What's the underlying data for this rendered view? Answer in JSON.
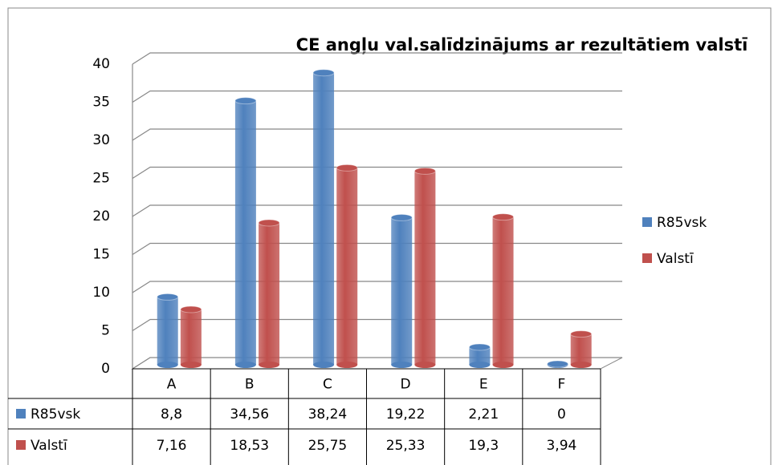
{
  "chart_data": {
    "type": "bar",
    "title": "CE angļu val.salīdzinājums ar rezultātiem valstī",
    "categories": [
      "A",
      "B",
      "C",
      "D",
      "E",
      "F"
    ],
    "series": [
      {
        "name": "R85vsk",
        "color": "#4f81bd",
        "values": [
          8.8,
          34.56,
          38.24,
          19.22,
          2.21,
          0
        ],
        "value_labels": [
          "8,8",
          "34,56",
          "38,24",
          "19,22",
          "2,21",
          "0"
        ]
      },
      {
        "name": "Valstī",
        "color": "#c0504d",
        "values": [
          7.16,
          18.53,
          25.75,
          25.33,
          19.3,
          3.94
        ],
        "value_labels": [
          "7,16",
          "18,53",
          "25,75",
          "25,33",
          "19,3",
          "3,94"
        ]
      }
    ],
    "ylim": [
      0,
      40
    ],
    "yticks": [
      0,
      5,
      10,
      15,
      20,
      25,
      30,
      35,
      40
    ],
    "grid": true,
    "legend": "right"
  }
}
